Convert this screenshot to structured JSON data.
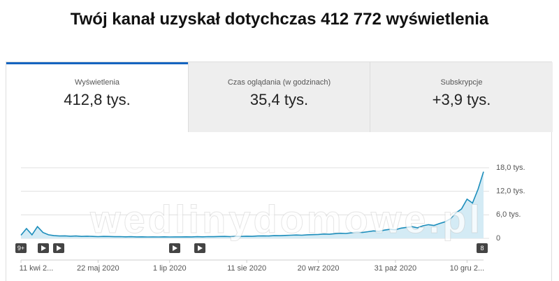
{
  "header": {
    "title": "Twój kanał uzyskał dotychczas 412 772 wyświetlenia"
  },
  "tabs": [
    {
      "label": "Wyświetlenia",
      "value": "412,8 tys."
    },
    {
      "label": "Czas oglądania (w godzinach)",
      "value": "35,4 tys."
    },
    {
      "label": "Subskrypcje",
      "value": "+3,9 tys."
    }
  ],
  "chart_data": {
    "type": "area",
    "color": "#1b8dbb",
    "fill": "#d4ebf5",
    "grid": true,
    "watermark": "wedlinydomowe.pl",
    "markers": [
      "9+",
      "8"
    ],
    "categories": [
      "11 kwi 2...",
      null,
      null,
      null,
      null,
      null,
      null,
      null,
      null,
      null,
      null,
      null,
      null,
      null,
      "22 maj 2020",
      null,
      null,
      null,
      null,
      null,
      null,
      null,
      null,
      null,
      null,
      null,
      null,
      "1 lip 2020",
      null,
      null,
      null,
      null,
      null,
      null,
      null,
      null,
      null,
      null,
      null,
      null,
      null,
      "11 sie 2020",
      null,
      null,
      null,
      null,
      null,
      null,
      null,
      null,
      null,
      null,
      null,
      null,
      "20 wrz 2020",
      null,
      null,
      null,
      null,
      null,
      null,
      null,
      null,
      null,
      null,
      null,
      null,
      null,
      "31 paź 2020",
      null,
      null,
      null,
      null,
      null,
      null,
      null,
      null,
      null,
      null,
      null,
      null,
      "10 gru 2...",
      null,
      null,
      null
    ],
    "values": [
      800,
      2500,
      900,
      3000,
      1500,
      900,
      700,
      600,
      650,
      550,
      600,
      500,
      550,
      500,
      450,
      500,
      480,
      420,
      450,
      400,
      420,
      380,
      400,
      350,
      380,
      360,
      400,
      350,
      380,
      370,
      400,
      380,
      420,
      400,
      450,
      420,
      480,
      500,
      450,
      520,
      500,
      550,
      520,
      600,
      650,
      600,
      700,
      680,
      750,
      800,
      850,
      800,
      900,
      950,
      1000,
      1100,
      1050,
      1200,
      1300,
      1250,
      1400,
      1600,
      1500,
      1700,
      1900,
      1800,
      2100,
      2300,
      2200,
      2600,
      2800,
      3000,
      2700,
      3200,
      3500,
      3300,
      3800,
      4200,
      5000,
      6500,
      7500,
      10000,
      9000,
      12500,
      17000
    ],
    "ylim": [
      0,
      18000
    ],
    "yticks": [
      0,
      {
        "value": 6000,
        "label": "6,0 tys."
      },
      {
        "value": 12000,
        "label": "12,0 tys."
      },
      {
        "value": 18000,
        "label": "18,0 tys."
      }
    ]
  }
}
